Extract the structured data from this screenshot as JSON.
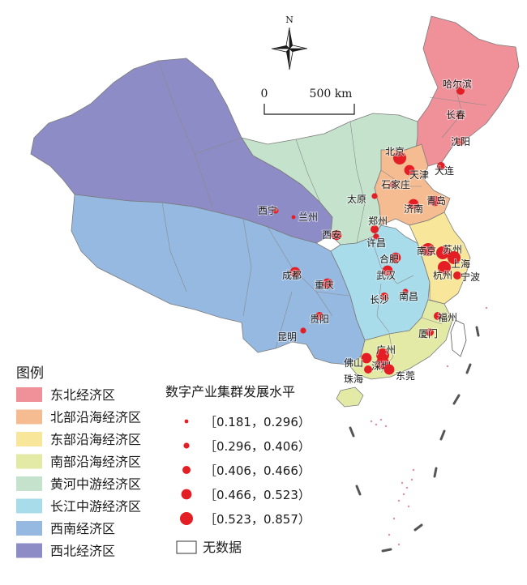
{
  "compass": {
    "label": "N"
  },
  "scale_bar": {
    "zero": "0",
    "distance": "500 km"
  },
  "legend": {
    "title": "图例",
    "regions": [
      {
        "name": "东北经济区",
        "color": "#f0919a"
      },
      {
        "name": "北部沿海经济区",
        "color": "#f5bc92"
      },
      {
        "name": "东部沿海经济区",
        "color": "#f8e79a"
      },
      {
        "name": "南部沿海经济区",
        "color": "#e3eaa6"
      },
      {
        "name": "黄河中游经济区",
        "color": "#c5e3cc"
      },
      {
        "name": "长江中游经济区",
        "color": "#a9dcea"
      },
      {
        "name": "西南经济区",
        "color": "#95b9e0"
      },
      {
        "name": "西北经济区",
        "color": "#8d8cc6"
      }
    ]
  },
  "size_legend": {
    "title": "数字产业集群发展水平",
    "classes": [
      {
        "range": "［0.181，0.296）"
      },
      {
        "range": "［0.296，0.406）"
      },
      {
        "range": "［0.406，0.466）"
      },
      {
        "range": "［0.466，0.523）"
      },
      {
        "range": "［0.523，0.857）"
      }
    ],
    "no_data": "无数据"
  },
  "symbol_color": "#e31e24",
  "cities": [
    {
      "name": "哈尔滨",
      "level": 3
    },
    {
      "name": "长春",
      "level": 2
    },
    {
      "name": "沈阳",
      "level": 3
    },
    {
      "name": "大连",
      "level": 3
    },
    {
      "name": "北京",
      "level": 5
    },
    {
      "name": "天津",
      "level": 4
    },
    {
      "name": "石家庄",
      "level": 2
    },
    {
      "name": "太原",
      "level": 2
    },
    {
      "name": "济南",
      "level": 4
    },
    {
      "name": "青岛",
      "level": 4
    },
    {
      "name": "郑州",
      "level": 3
    },
    {
      "name": "许昌",
      "level": 2
    },
    {
      "name": "西安",
      "level": 4
    },
    {
      "name": "西宁",
      "level": 2
    },
    {
      "name": "兰州",
      "level": 1
    },
    {
      "name": "成都",
      "level": 4
    },
    {
      "name": "重庆",
      "level": 4
    },
    {
      "name": "贵阳",
      "level": 3
    },
    {
      "name": "昆明",
      "level": 2
    },
    {
      "name": "武汉",
      "level": 4
    },
    {
      "name": "长沙",
      "level": 3
    },
    {
      "name": "南昌",
      "level": 2
    },
    {
      "name": "合肥",
      "level": 4
    },
    {
      "name": "南京",
      "level": 5
    },
    {
      "name": "苏州",
      "level": 5
    },
    {
      "name": "上海",
      "level": 5
    },
    {
      "name": "杭州",
      "level": 5
    },
    {
      "name": "宁波",
      "level": 3
    },
    {
      "name": "福州",
      "level": 3
    },
    {
      "name": "厦门",
      "level": 3
    },
    {
      "name": "广州",
      "level": 5
    },
    {
      "name": "深圳",
      "level": 5
    },
    {
      "name": "佛山",
      "level": 4
    },
    {
      "name": "东莞",
      "level": 4
    },
    {
      "name": "珠海",
      "level": 3
    }
  ]
}
